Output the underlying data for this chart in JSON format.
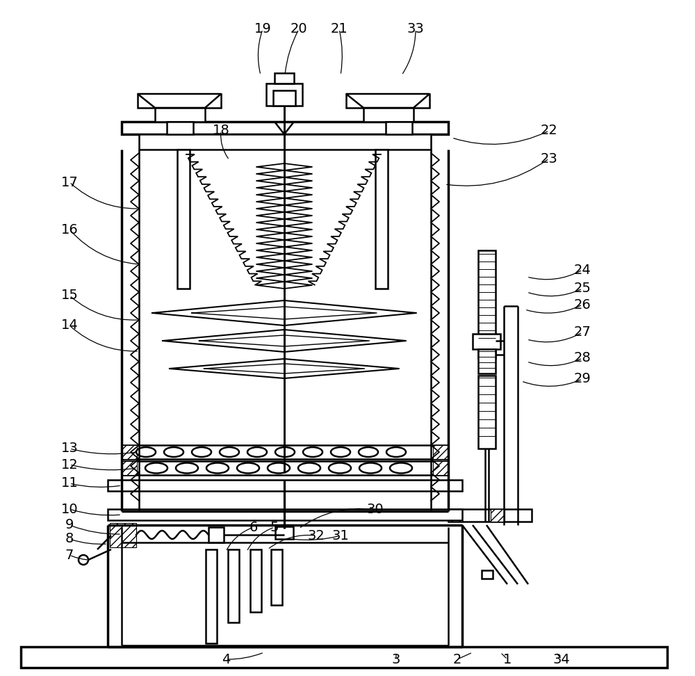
{
  "bg_color": "#ffffff",
  "lc": "#000000",
  "lw": 1.8,
  "tlw": 2.5
}
